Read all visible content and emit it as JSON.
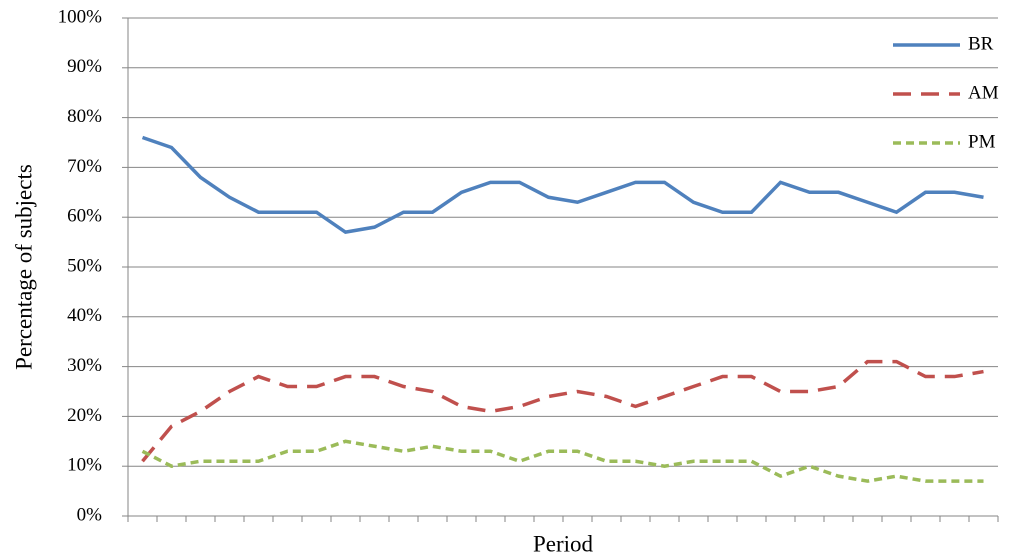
{
  "chart_data": {
    "type": "line",
    "x_label": "Period",
    "y_label": "Percentage of subjects",
    "categories": [
      null,
      null,
      null,
      null,
      null,
      null,
      null,
      null,
      null,
      null,
      null,
      null,
      null,
      null,
      null,
      null,
      null,
      null,
      null,
      null,
      null,
      null,
      null,
      null,
      null,
      null,
      null,
      null,
      null,
      null
    ],
    "series": [
      {
        "name": "BR",
        "color": "#4f81bd",
        "dash": "solid",
        "values": [
          76,
          74,
          68,
          64,
          61,
          61,
          61,
          57,
          58,
          61,
          61,
          65,
          67,
          67,
          64,
          63,
          65,
          67,
          67,
          63,
          61,
          61,
          67,
          65,
          65,
          63,
          61,
          65,
          65,
          64
        ]
      },
      {
        "name": "AM",
        "color": "#c0504d",
        "dash": "dashed",
        "values": [
          11,
          18,
          21,
          25,
          28,
          26,
          26,
          28,
          28,
          26,
          25,
          22,
          21,
          22,
          24,
          25,
          24,
          22,
          24,
          26,
          28,
          28,
          25,
          25,
          26,
          31,
          31,
          28,
          28,
          29
        ]
      },
      {
        "name": "PM",
        "color": "#9bbb59",
        "dash": "dotted",
        "values": [
          13,
          10,
          11,
          11,
          11,
          13,
          13,
          15,
          14,
          13,
          14,
          13,
          13,
          11,
          13,
          13,
          11,
          11,
          10,
          11,
          11,
          11,
          8,
          10,
          8,
          7,
          8,
          7,
          7,
          7
        ]
      }
    ],
    "ylim": [
      0,
      100
    ],
    "yticks": [
      {
        "value": 0,
        "label": "0%"
      },
      {
        "value": 10,
        "label": "10%"
      },
      {
        "value": 20,
        "label": "20%"
      },
      {
        "value": 30,
        "label": "30%"
      },
      {
        "value": 40,
        "label": "40%"
      },
      {
        "value": 50,
        "label": "50%"
      },
      {
        "value": 60,
        "label": "60%"
      },
      {
        "value": 70,
        "label": "70%"
      },
      {
        "value": 80,
        "label": "80%"
      },
      {
        "value": 90,
        "label": "90%"
      },
      {
        "value": 100,
        "label": "100%"
      }
    ],
    "grid": true,
    "legend": "top-right"
  }
}
